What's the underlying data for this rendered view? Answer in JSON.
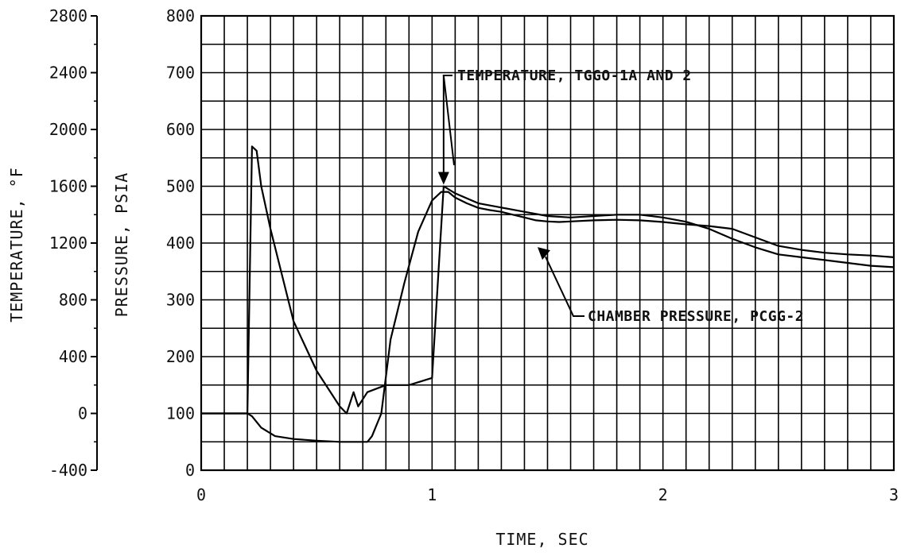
{
  "chart_data": {
    "type": "line",
    "xlabel": "TIME, SEC",
    "ylabel_pressure": "PRESSURE, PSIA",
    "ylabel_temperature": "TEMPERATURE, °F",
    "xlim": [
      0,
      3
    ],
    "ylim_pressure": [
      0,
      800
    ],
    "ylim_temperature": [
      -400,
      2800
    ],
    "x_ticks": [
      "0",
      "1",
      "2",
      "3"
    ],
    "pressure_ticks": [
      "800",
      "700",
      "600",
      "500",
      "400",
      "300",
      "200",
      "100",
      "0"
    ],
    "temperature_ticks": [
      "2800",
      "2400",
      "2000",
      "1600",
      "1200",
      "800",
      "400",
      "0",
      "-400"
    ],
    "grid": true,
    "series": [
      {
        "name": "TEMPERATURE, TGGO-1A AND 2",
        "axis": "temperature",
        "x": [
          0,
          0.18,
          0.19,
          0.2,
          0.22,
          0.24,
          0.26,
          0.3,
          0.4,
          0.5,
          0.6,
          0.63,
          0.66,
          0.68,
          0.72,
          0.8,
          0.9,
          1.0,
          1.05,
          1.1,
          1.2,
          1.3,
          1.4,
          1.5,
          1.6,
          1.7,
          1.8,
          1.9,
          2.0,
          2.1,
          2.2,
          2.3,
          2.4,
          2.5,
          2.6,
          2.7,
          2.8,
          2.9,
          3.0
        ],
        "y": [
          0,
          0,
          0,
          0,
          1880,
          1850,
          1600,
          1300,
          650,
          300,
          50,
          0,
          150,
          50,
          150,
          200,
          200,
          250,
          1600,
          1550,
          1480,
          1450,
          1420,
          1390,
          1380,
          1390,
          1400,
          1400,
          1380,
          1350,
          1300,
          1230,
          1170,
          1120,
          1100,
          1080,
          1060,
          1040,
          1030
        ]
      },
      {
        "name": "CHAMBER PRESSURE, PCGG-2",
        "axis": "pressure",
        "x": [
          0,
          0.2,
          0.22,
          0.26,
          0.32,
          0.4,
          0.5,
          0.6,
          0.72,
          0.74,
          0.78,
          0.82,
          0.88,
          0.94,
          1.0,
          1.04,
          1.07,
          1.1,
          1.15,
          1.2,
          1.25,
          1.3,
          1.35,
          1.4,
          1.45,
          1.5,
          1.55,
          1.6,
          1.7,
          1.8,
          1.9,
          2.0,
          2.05,
          2.1,
          2.2,
          2.3,
          2.4,
          2.5,
          2.6,
          2.7,
          2.8,
          2.9,
          3.0
        ],
        "y": [
          100,
          100,
          95,
          75,
          60,
          55,
          52,
          50,
          50,
          60,
          100,
          230,
          330,
          420,
          475,
          490,
          490,
          480,
          470,
          462,
          458,
          455,
          450,
          445,
          440,
          438,
          437,
          438,
          440,
          441,
          440,
          437,
          435,
          433,
          430,
          425,
          410,
          395,
          388,
          383,
          380,
          378,
          375
        ]
      }
    ],
    "annotations": [
      {
        "text": "TEMPERATURE, TGGO-1A AND 2",
        "target_series": 0
      },
      {
        "text": "CHAMBER PRESSURE, PCGG-2",
        "target_series": 1
      }
    ]
  }
}
